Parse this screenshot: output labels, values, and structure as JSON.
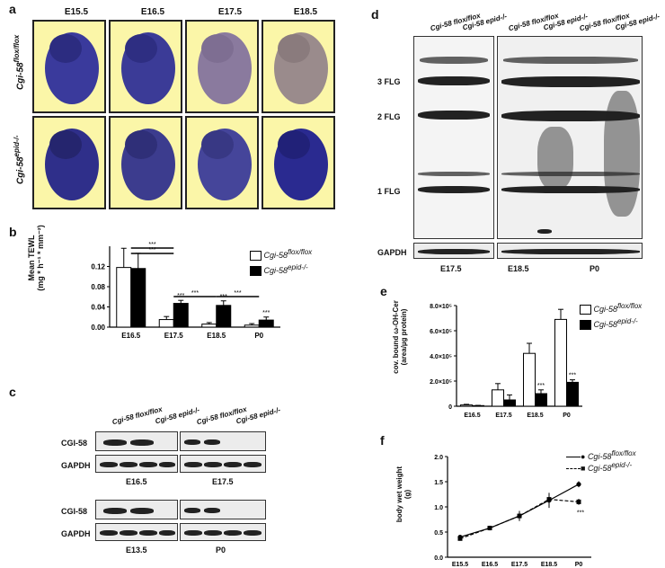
{
  "panels": {
    "a": {
      "label": "a",
      "stages": [
        "E15.5",
        "E16.5",
        "E17.5",
        "E18.5"
      ],
      "genotypes": [
        "Cgi-58 flox/flox",
        "Cgi-58 epid-/-"
      ],
      "row_labels": {
        "top_base": "Cgi-58",
        "top_sup": "flox/flox",
        "bottom_base": "Cgi-58",
        "bottom_sup": "epid-/-"
      }
    },
    "b": {
      "label": "b",
      "legend": [
        {
          "base": "Cgi-58",
          "sup": "flox/flox",
          "color": "#ffffff"
        },
        {
          "base": "Cgi-58",
          "sup": "epid-/-",
          "color": "#000000"
        }
      ],
      "ylabel_line1": "Mean TEWL",
      "ylabel_line2": "(mg * h⁻¹ * mm⁻²)",
      "sig": [
        "***",
        "***",
        "***",
        "***",
        "***",
        "***",
        "***"
      ]
    },
    "c": {
      "label": "c",
      "col_labels": [
        "Cgi-58 flox/flox",
        "Cgi-58 epid-/-",
        "Cgi-58 flox/flox",
        "Cgi-58 epid-/-"
      ],
      "row1": [
        "CGI-58",
        "GAPDH"
      ],
      "row2": [
        "CGI-58",
        "GAPDH"
      ],
      "stages_top": [
        "E16.5",
        "E17.5"
      ],
      "stages_bottom": [
        "E13.5",
        "P0"
      ]
    },
    "d": {
      "label": "d",
      "col_labels": [
        "Cgi-58 flox/flox",
        "Cgi-58 epid-/-",
        "Cgi-58 flox/flox",
        "Cgi-58 epid-/-",
        "Cgi-58 flox/flox",
        "Cgi-58 epid-/-"
      ],
      "bands": [
        "3 FLG",
        "2 FLG",
        "1 FLG"
      ],
      "loading": "GAPDH",
      "stages": [
        "E17.5",
        "E18.5",
        "P0"
      ]
    },
    "e": {
      "label": "e",
      "legend": [
        {
          "base": "Cgi-58",
          "sup": "flox/flox",
          "color": "#ffffff"
        },
        {
          "base": "Cgi-58",
          "sup": "epid-/-",
          "color": "#000000"
        }
      ],
      "ylabel_line1": "cov. bound ω-OH-Cer",
      "ylabel_line2": "(area/µg protein)",
      "sig": [
        "***",
        "***"
      ]
    },
    "f": {
      "label": "f",
      "legend": [
        {
          "base": "Cgi-58",
          "sup": "flox/flox",
          "style": "solid"
        },
        {
          "base": "Cgi-58",
          "sup": "epid-/-",
          "style": "dashed"
        }
      ],
      "ylabel_line1": "body wet weight",
      "ylabel_line2": "(g)",
      "sig": [
        "***"
      ]
    }
  },
  "chart_data": [
    {
      "panel": "b",
      "type": "bar",
      "categories": [
        "E16.5",
        "E17.5",
        "E18.5",
        "P0"
      ],
      "series": [
        {
          "name": "Cgi-58 flox/flox",
          "values": [
            0.118,
            0.015,
            0.006,
            0.004
          ],
          "errors": [
            0.038,
            0.006,
            0.003,
            0.003
          ]
        },
        {
          "name": "Cgi-58 epid-/-",
          "values": [
            0.116,
            0.047,
            0.043,
            0.014
          ],
          "errors": [
            0.03,
            0.006,
            0.009,
            0.006
          ]
        }
      ],
      "yticks": [
        "0.00",
        "0.04",
        "0.08",
        "0.12"
      ],
      "ylim": [
        0,
        0.16
      ]
    },
    {
      "panel": "e",
      "type": "bar",
      "categories": [
        "E16.5",
        "E17.5",
        "E18.5",
        "P0"
      ],
      "series": [
        {
          "name": "Cgi-58 flox/flox",
          "values": [
            0.1,
            1.3,
            4.2,
            6.9
          ],
          "errors": [
            0.05,
            0.5,
            0.8,
            0.8
          ]
        },
        {
          "name": "Cgi-58 epid-/-",
          "values": [
            0.05,
            0.5,
            1.0,
            1.9
          ],
          "errors": [
            0.02,
            0.4,
            0.3,
            0.2
          ]
        }
      ],
      "yticks": [
        "0",
        "2.0×10⁵",
        "4.0×10⁵",
        "6.0×10⁵",
        "8.0×10⁵"
      ],
      "ylim": [
        0,
        8
      ]
    },
    {
      "panel": "f",
      "type": "line",
      "x": [
        "E15.5",
        "E16.5",
        "E17.5",
        "E18.5",
        "P0"
      ],
      "series": [
        {
          "name": "Cgi-58 flox/flox",
          "values": [
            0.4,
            0.58,
            0.82,
            1.13,
            1.45
          ],
          "errors": [
            0.03,
            0.04,
            0.1,
            0.15,
            0.06
          ]
        },
        {
          "name": "Cgi-58 epid-/-",
          "values": [
            0.37,
            0.58,
            0.82,
            1.15,
            1.1
          ],
          "errors": [
            0.03,
            0.04,
            0.1,
            0.12,
            0.06
          ]
        }
      ],
      "yticks": [
        "0.0",
        "0.5",
        "1.0",
        "1.5",
        "2.0"
      ],
      "ylim": [
        0,
        2.0
      ]
    }
  ]
}
